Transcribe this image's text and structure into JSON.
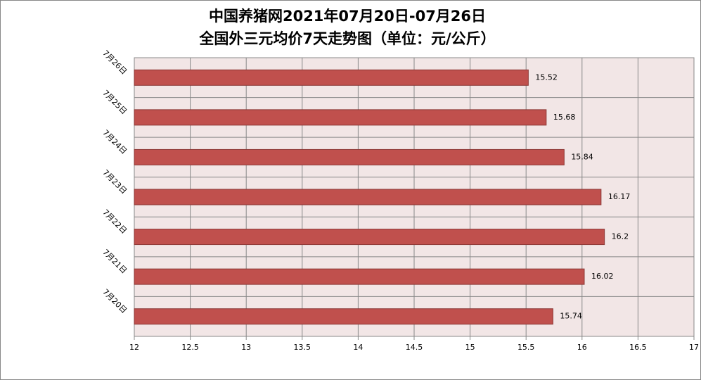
{
  "chart_data": {
    "type": "bar",
    "orientation": "horizontal",
    "title": "中国养猪网2021年07月20日-07月26日",
    "subtitle": "全国外三元均价7天走势图（单位：元/公斤）",
    "categories": [
      "7月26日",
      "7月25日",
      "7月24日",
      "7月23日",
      "7月22日",
      "7月21日",
      "7月20日"
    ],
    "values": [
      15.52,
      15.68,
      15.84,
      16.17,
      16.2,
      16.02,
      15.74
    ],
    "color": "#c0504d",
    "xlim": [
      12,
      17
    ],
    "xticks": [
      12,
      12.5,
      13,
      13.5,
      14,
      14.5,
      15,
      15.5,
      16,
      16.5,
      17
    ],
    "grid": true
  }
}
